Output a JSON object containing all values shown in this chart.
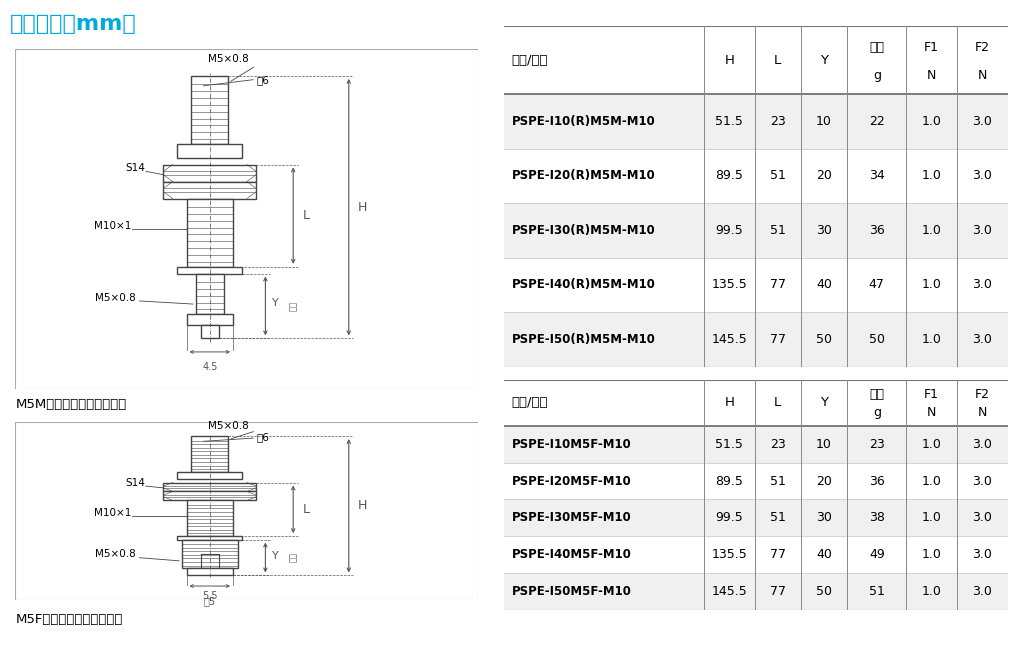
{
  "title": "尺寸规格（mm）",
  "title_color": "#00aadd",
  "bg_color": "#ffffff",
  "table1_header": [
    "型号/尺寸",
    "H",
    "L",
    "Y",
    "单重\ng",
    "F1\nN",
    "F2\nN"
  ],
  "table1_rows": [
    [
      "PSPE-I10(R)M5M-M10",
      "51.5",
      "23",
      "10",
      "22",
      "1.0",
      "3.0"
    ],
    [
      "PSPE-I20(R)M5M-M10",
      "89.5",
      "51",
      "20",
      "34",
      "1.0",
      "3.0"
    ],
    [
      "PSPE-I30(R)M5M-M10",
      "99.5",
      "51",
      "30",
      "36",
      "1.0",
      "3.0"
    ],
    [
      "PSPE-I40(R)M5M-M10",
      "135.5",
      "77",
      "40",
      "47",
      "1.0",
      "3.0"
    ],
    [
      "PSPE-I50(R)M5M-M10",
      "145.5",
      "77",
      "50",
      "50",
      "1.0",
      "3.0"
    ]
  ],
  "table2_header": [
    "型号/尺寸",
    "H",
    "L",
    "Y",
    "单重\ng",
    "F1\nN",
    "F2\nN"
  ],
  "table2_rows": [
    [
      "PSPE-I10M5F-M10",
      "51.5",
      "23",
      "10",
      "23",
      "1.0",
      "3.0"
    ],
    [
      "PSPE-I20M5F-M10",
      "89.5",
      "51",
      "20",
      "36",
      "1.0",
      "3.0"
    ],
    [
      "PSPE-I30M5F-M10",
      "99.5",
      "51",
      "30",
      "38",
      "1.0",
      "3.0"
    ],
    [
      "PSPE-I40M5F-M10",
      "135.5",
      "77",
      "40",
      "49",
      "1.0",
      "3.0"
    ],
    [
      "PSPE-I50M5F-M10",
      "145.5",
      "77",
      "50",
      "51",
      "1.0",
      "3.0"
    ]
  ],
  "label1": "M5M－垂直方向外螺纹连接",
  "label2": "M5F－垂直方向内螺纹连接",
  "line_color": "#444444",
  "dim_color": "#555555",
  "text_color": "#000000",
  "border_color": "#999999",
  "row_alt_color": "#f0f0f0",
  "row_color": "#ffffff"
}
